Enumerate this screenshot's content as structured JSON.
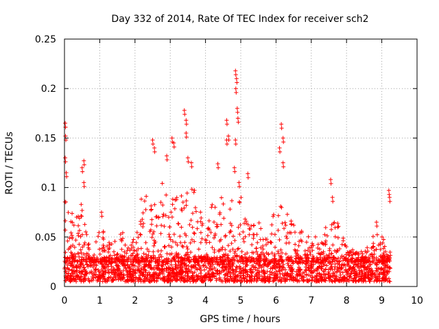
{
  "chart_data": {
    "type": "scatter",
    "title": "Day 332 of 2014, Rate Of TEC Index for receiver sch2",
    "xlabel": "GPS time / hours",
    "ylabel": "ROTI / TECUs",
    "xlim": [
      0,
      10
    ],
    "ylim": [
      0,
      0.25
    ],
    "x_ticks": [
      "0",
      "1",
      "2",
      "3",
      "4",
      "5",
      "6",
      "7",
      "8",
      "9",
      "10"
    ],
    "y_ticks": [
      "0",
      "0.05",
      "0.1",
      "0.15",
      "0.2",
      "0.25"
    ],
    "grid": true,
    "marker": "+",
    "series_color": "#ff0000",
    "notable_points": [
      {
        "x": 0.02,
        "y": 0.165
      },
      {
        "x": 0.03,
        "y": 0.152
      },
      {
        "x": 0.02,
        "y": 0.13
      },
      {
        "x": 0.05,
        "y": 0.115
      },
      {
        "x": 0.5,
        "y": 0.12
      },
      {
        "x": 0.55,
        "y": 0.127
      },
      {
        "x": 0.55,
        "y": 0.105
      },
      {
        "x": 1.05,
        "y": 0.075
      },
      {
        "x": 2.5,
        "y": 0.148
      },
      {
        "x": 2.55,
        "y": 0.14
      },
      {
        "x": 2.9,
        "y": 0.132
      },
      {
        "x": 3.05,
        "y": 0.15
      },
      {
        "x": 3.1,
        "y": 0.145
      },
      {
        "x": 3.4,
        "y": 0.178
      },
      {
        "x": 3.45,
        "y": 0.168
      },
      {
        "x": 3.45,
        "y": 0.155
      },
      {
        "x": 3.5,
        "y": 0.13
      },
      {
        "x": 3.6,
        "y": 0.125
      },
      {
        "x": 4.35,
        "y": 0.124
      },
      {
        "x": 4.6,
        "y": 0.168
      },
      {
        "x": 4.65,
        "y": 0.152
      },
      {
        "x": 4.6,
        "y": 0.148
      },
      {
        "x": 4.85,
        "y": 0.218
      },
      {
        "x": 4.88,
        "y": 0.21
      },
      {
        "x": 4.86,
        "y": 0.2
      },
      {
        "x": 4.9,
        "y": 0.18
      },
      {
        "x": 4.92,
        "y": 0.17
      },
      {
        "x": 4.85,
        "y": 0.148
      },
      {
        "x": 4.82,
        "y": 0.12
      },
      {
        "x": 4.95,
        "y": 0.105
      },
      {
        "x": 5.2,
        "y": 0.114
      },
      {
        "x": 6.15,
        "y": 0.164
      },
      {
        "x": 6.2,
        "y": 0.15
      },
      {
        "x": 6.1,
        "y": 0.14
      },
      {
        "x": 6.2,
        "y": 0.125
      },
      {
        "x": 7.55,
        "y": 0.108
      },
      {
        "x": 7.6,
        "y": 0.09
      },
      {
        "x": 8.85,
        "y": 0.065
      },
      {
        "x": 9.2,
        "y": 0.097
      },
      {
        "x": 9.22,
        "y": 0.09
      }
    ],
    "dense_band": {
      "x_range": [
        0,
        9.25
      ],
      "y_range": [
        0.005,
        0.03
      ]
    },
    "activity_envelope": [
      {
        "x": 0.0,
        "y": 0.09
      },
      {
        "x": 0.3,
        "y": 0.07
      },
      {
        "x": 0.5,
        "y": 0.09
      },
      {
        "x": 0.8,
        "y": 0.03
      },
      {
        "x": 1.0,
        "y": 0.07
      },
      {
        "x": 1.3,
        "y": 0.045
      },
      {
        "x": 1.6,
        "y": 0.055
      },
      {
        "x": 2.0,
        "y": 0.05
      },
      {
        "x": 2.2,
        "y": 0.1
      },
      {
        "x": 2.5,
        "y": 0.08
      },
      {
        "x": 2.8,
        "y": 0.11
      },
      {
        "x": 3.0,
        "y": 0.09
      },
      {
        "x": 3.3,
        "y": 0.1
      },
      {
        "x": 3.6,
        "y": 0.11
      },
      {
        "x": 4.0,
        "y": 0.06
      },
      {
        "x": 4.3,
        "y": 0.1
      },
      {
        "x": 4.6,
        "y": 0.08
      },
      {
        "x": 4.9,
        "y": 0.1
      },
      {
        "x": 5.3,
        "y": 0.07
      },
      {
        "x": 5.7,
        "y": 0.06
      },
      {
        "x": 6.0,
        "y": 0.085
      },
      {
        "x": 6.3,
        "y": 0.08
      },
      {
        "x": 6.6,
        "y": 0.06
      },
      {
        "x": 7.0,
        "y": 0.05
      },
      {
        "x": 7.4,
        "y": 0.06
      },
      {
        "x": 7.7,
        "y": 0.07
      },
      {
        "x": 8.0,
        "y": 0.04
      },
      {
        "x": 8.5,
        "y": 0.035
      },
      {
        "x": 8.9,
        "y": 0.06
      },
      {
        "x": 9.2,
        "y": 0.035
      }
    ]
  }
}
